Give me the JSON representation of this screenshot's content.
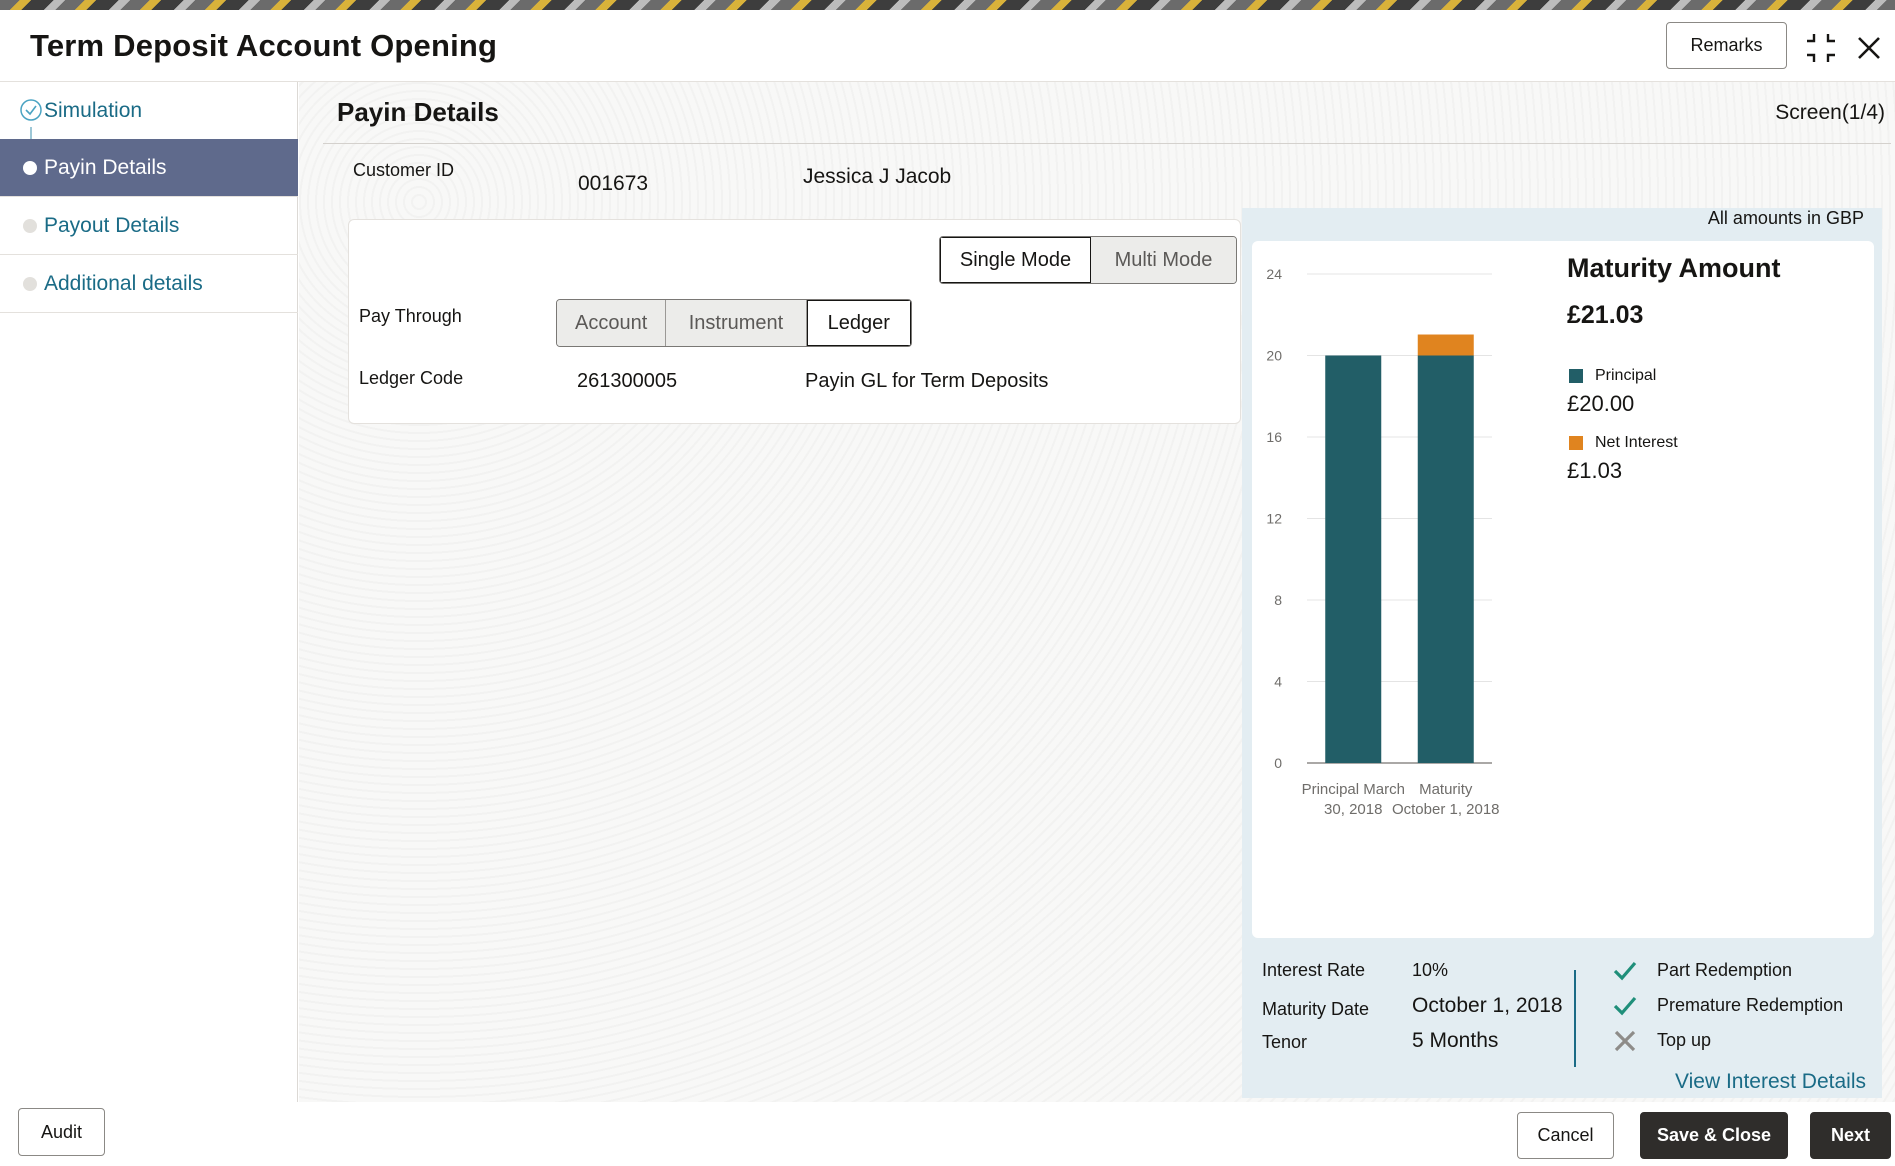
{
  "header": {
    "title": "Term Deposit Account Opening",
    "remarks_label": "Remarks"
  },
  "sidebar": {
    "steps": [
      {
        "label": "Simulation",
        "state": "completed"
      },
      {
        "label": "Payin Details",
        "state": "active"
      },
      {
        "label": "Payout Details",
        "state": "pending"
      },
      {
        "label": "Additional details",
        "state": "pending"
      }
    ]
  },
  "main": {
    "section_title": "Payin Details",
    "screen_counter": "Screen(1/4)",
    "customer_id_label": "Customer ID",
    "customer_id": "001673",
    "customer_name": "Jessica J Jacob",
    "mode_options": [
      "Single Mode",
      "Multi Mode"
    ],
    "mode_selected": "Single Mode",
    "pay_through_label": "Pay Through",
    "pay_through_options": [
      "Account",
      "Instrument",
      "Ledger"
    ],
    "pay_through_selected": "Ledger",
    "ledger_code_label": "Ledger Code",
    "ledger_code": "261300005",
    "ledger_desc": "Payin GL for Term Deposits"
  },
  "panel": {
    "currency_note": "All amounts in GBP",
    "maturity_title": "Maturity Amount",
    "maturity_amount": "£21.03",
    "legend": [
      {
        "name": "Principal",
        "value": "£20.00",
        "color": "#225e67"
      },
      {
        "name": "Net Interest",
        "value": "£1.03",
        "color": "#e0841f"
      }
    ],
    "interest_rate_label": "Interest Rate",
    "interest_rate": "10%",
    "maturity_date_label": "Maturity Date",
    "maturity_date": "October 1, 2018",
    "tenor_label": "Tenor",
    "tenor": "5 Months",
    "features": [
      {
        "label": "Part Redemption",
        "enabled": true
      },
      {
        "label": "Premature Redemption",
        "enabled": true
      },
      {
        "label": "Top up",
        "enabled": false
      }
    ],
    "view_interest_label": "View Interest Details"
  },
  "footer": {
    "audit_label": "Audit",
    "cancel_label": "Cancel",
    "save_close_label": "Save & Close",
    "next_label": "Next"
  },
  "chart_data": {
    "type": "bar",
    "stacked": true,
    "categories": [
      "Principal March 30, 2018",
      "Maturity October 1, 2018"
    ],
    "category_lines": [
      [
        "Principal March",
        "30, 2018"
      ],
      [
        "Maturity",
        "October 1, 2018"
      ]
    ],
    "series": [
      {
        "name": "Principal",
        "values": [
          20,
          20
        ],
        "color": "#225e67"
      },
      {
        "name": "Net Interest",
        "values": [
          0,
          1.03
        ],
        "color": "#e0841f"
      }
    ],
    "ylim": [
      0,
      24
    ],
    "yticks": [
      "0",
      "4",
      "8",
      "12",
      "16",
      "20",
      "24"
    ],
    "grid": true
  }
}
